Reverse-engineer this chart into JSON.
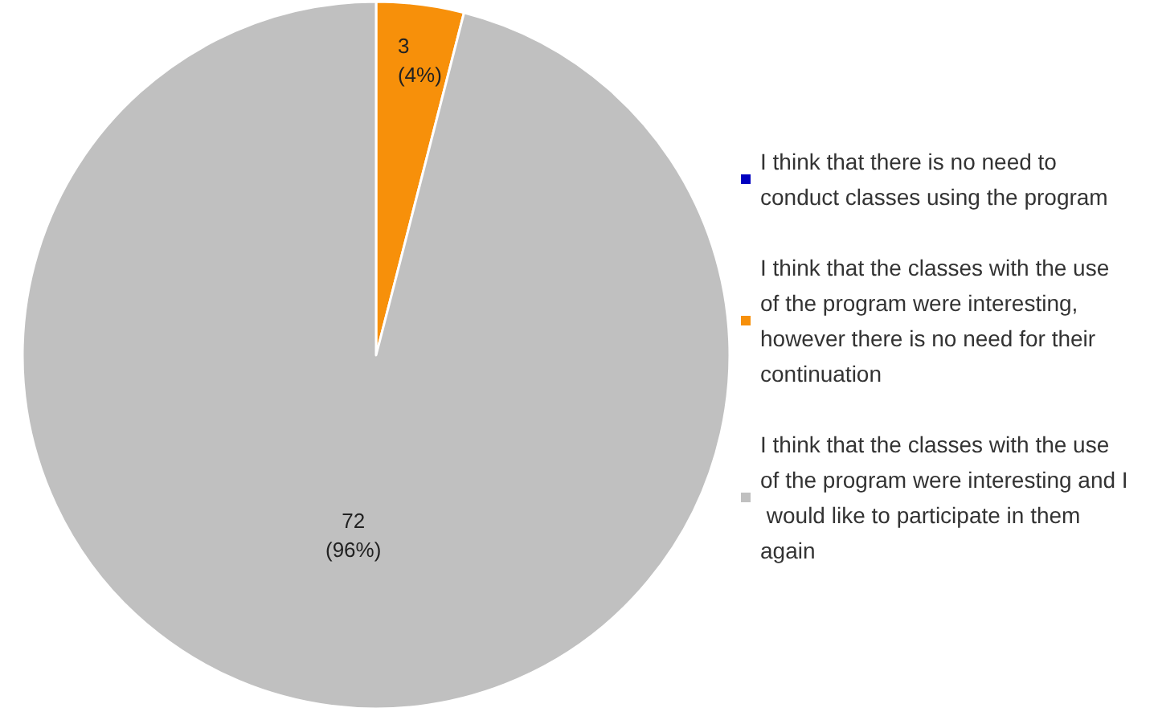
{
  "chart_data": {
    "type": "pie",
    "categories": [
      "I think that there is no need to conduct classes using the program",
      "I think that the classes with the use of the program were interesting, however there is no need for their continuation",
      "I think that the classes with the use of the program were interesting and I would like to participate in them again"
    ],
    "values": [
      0,
      3,
      72
    ],
    "colors": [
      "#0000c0",
      "#f7900a",
      "#c0c0c0"
    ],
    "value_labels": [
      null,
      "3\n(4%)",
      "72\n(96%)"
    ],
    "legend": "right"
  }
}
